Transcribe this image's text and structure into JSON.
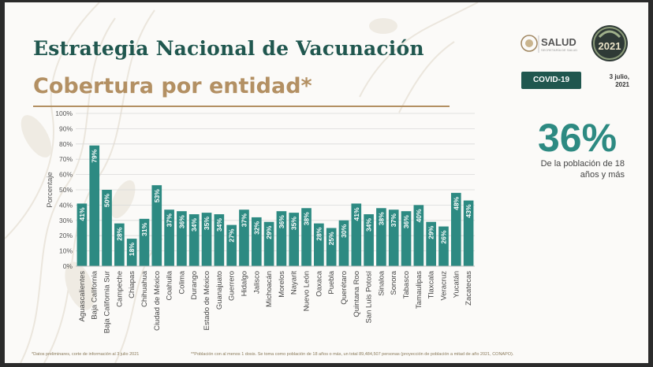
{
  "header": {
    "title": "Estrategia Nacional de Vacunación",
    "subtitle": "Cobertura por entidad*"
  },
  "branding": {
    "salud": "SALUD",
    "salud_sub": "SECRETARÍA DE SALUD",
    "vacuna_year": "2021",
    "covid_badge": "COVID-19",
    "date_line1": "3 julio,",
    "date_line2": "2021"
  },
  "summary": {
    "percent": "36%",
    "description": "De la población de 18 años y más"
  },
  "footnotes": {
    "left": "*Datos preliminares, corte de información al 3 julio 2021",
    "right": "**Población con al menos 1 dosis. Se toma como población de 18 años o más, un total 89,484,507 personas (proyección de población a mitad de año 2021, CONAPO)."
  },
  "colors": {
    "bar": "#2d8a82",
    "title": "#20574f",
    "accent": "#b39063"
  },
  "chart_data": {
    "type": "bar",
    "ylabel": "Porcentaje",
    "ylim": [
      0,
      100
    ],
    "yticks": [
      "0%",
      "10%",
      "20%",
      "30%",
      "40%",
      "50%",
      "60%",
      "70%",
      "80%",
      "90%",
      "100%"
    ],
    "grid": true,
    "categories": [
      "Aguascalientes",
      "Baja California",
      "Baja California Sur",
      "Campeche",
      "Chiapas",
      "Chihuahua",
      "Ciudad de México",
      "Coahuila",
      "Colima",
      "Durango",
      "Estado de México",
      "Guanajuato",
      "Guerrero",
      "Hidalgo",
      "Jalisco",
      "Michoacán",
      "Morelos",
      "Nayarit",
      "Nuevo León",
      "Oaxaca",
      "Puebla",
      "Querétaro",
      "Quintana Roo",
      "San Luis Potosí",
      "Sinaloa",
      "Sonora",
      "Tabasco",
      "Tamaulipas",
      "Tlaxcala",
      "Veracruz",
      "Yucatán",
      "Zacatecas"
    ],
    "values": [
      41,
      79,
      50,
      28,
      18,
      31,
      53,
      37,
      36,
      34,
      35,
      34,
      27,
      37,
      32,
      29,
      36,
      35,
      38,
      28,
      25,
      30,
      41,
      34,
      38,
      37,
      36,
      40,
      29,
      26,
      48,
      43
    ],
    "labels": [
      "41%",
      "79%",
      "50%",
      "28%",
      "18%",
      "31%",
      "53%",
      "37%",
      "36%",
      "34%",
      "35%",
      "34%",
      "27%",
      "37%",
      "32%",
      "29%",
      "36%",
      "35%",
      "38%",
      "28%",
      "25%",
      "30%",
      "41%",
      "34%",
      "38%",
      "37%",
      "36%",
      "40%",
      "29%",
      "26%",
      "48%",
      "43%"
    ]
  }
}
